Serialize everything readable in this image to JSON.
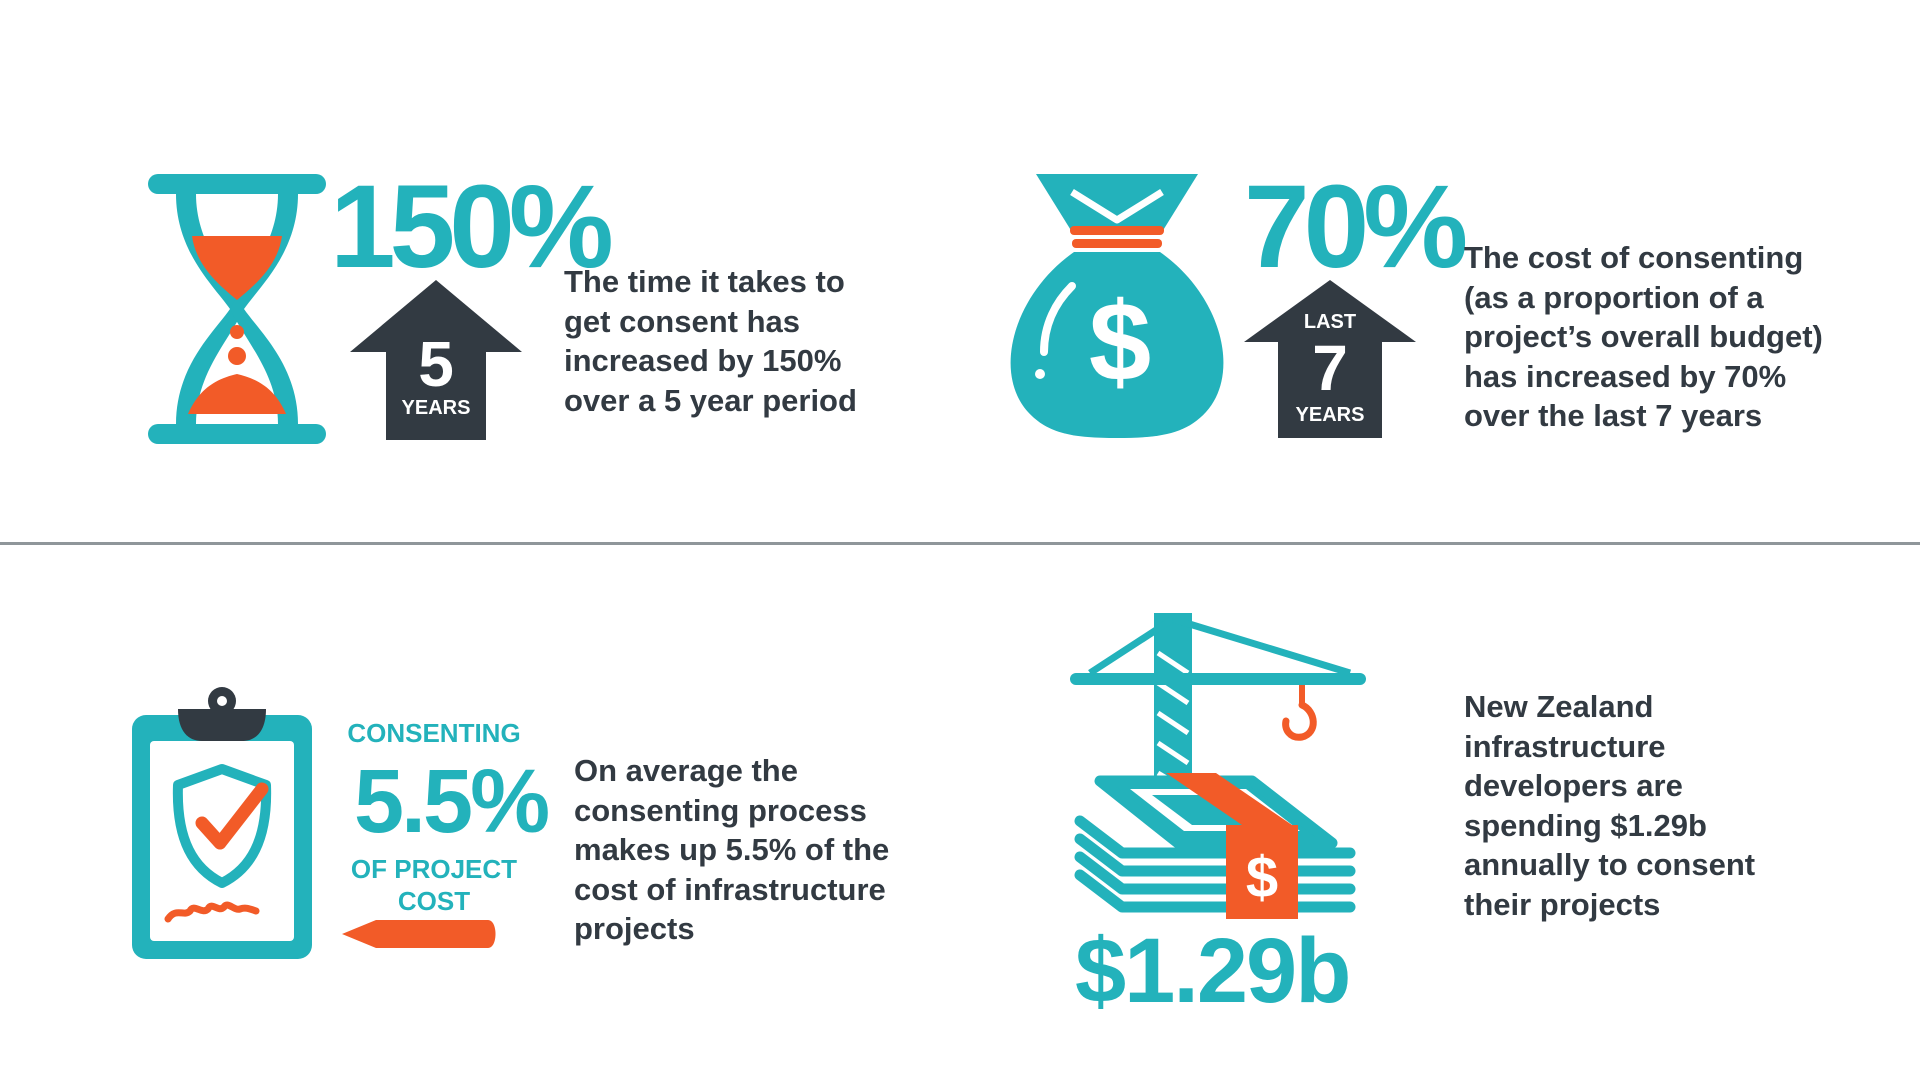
{
  "colors": {
    "teal": "#23b2bb",
    "orange": "#f25b28",
    "dark": "#323a42",
    "divider": "#8f969a"
  },
  "stat1": {
    "icon": "hourglass-icon",
    "value": "150%",
    "arrow_number": "5",
    "arrow_label": "YEARS",
    "description": [
      "The time it takes to",
      "get consent has",
      "increased by 150%",
      "over a 5 year period"
    ]
  },
  "stat2": {
    "icon": "money-bag-icon",
    "bag_symbol": "$",
    "value": "70%",
    "arrow_top": "LAST",
    "arrow_number": "7",
    "arrow_label": "YEARS",
    "description": [
      "The cost of consenting",
      "(as a proportion of a",
      "project’s overall budget)",
      "has increased by 70%",
      "over the last 7 years"
    ]
  },
  "stat3": {
    "icon": "clipboard-shield-check-icon",
    "top_label": "CONSENTING",
    "value": "5.5%",
    "bottom_label_1": "OF PROJECT",
    "bottom_label_2": "COST",
    "description": [
      "On average the",
      "consenting process",
      "makes up 5.5% of the",
      "cost of infrastructure",
      "projects"
    ]
  },
  "stat4": {
    "icon": "crane-money-stack-icon",
    "money_symbol": "$",
    "value": "$1.29b",
    "description": [
      "New Zealand",
      "infrastructure",
      "developers are",
      "spending $1.29b",
      "annually to consent",
      "their projects"
    ]
  }
}
